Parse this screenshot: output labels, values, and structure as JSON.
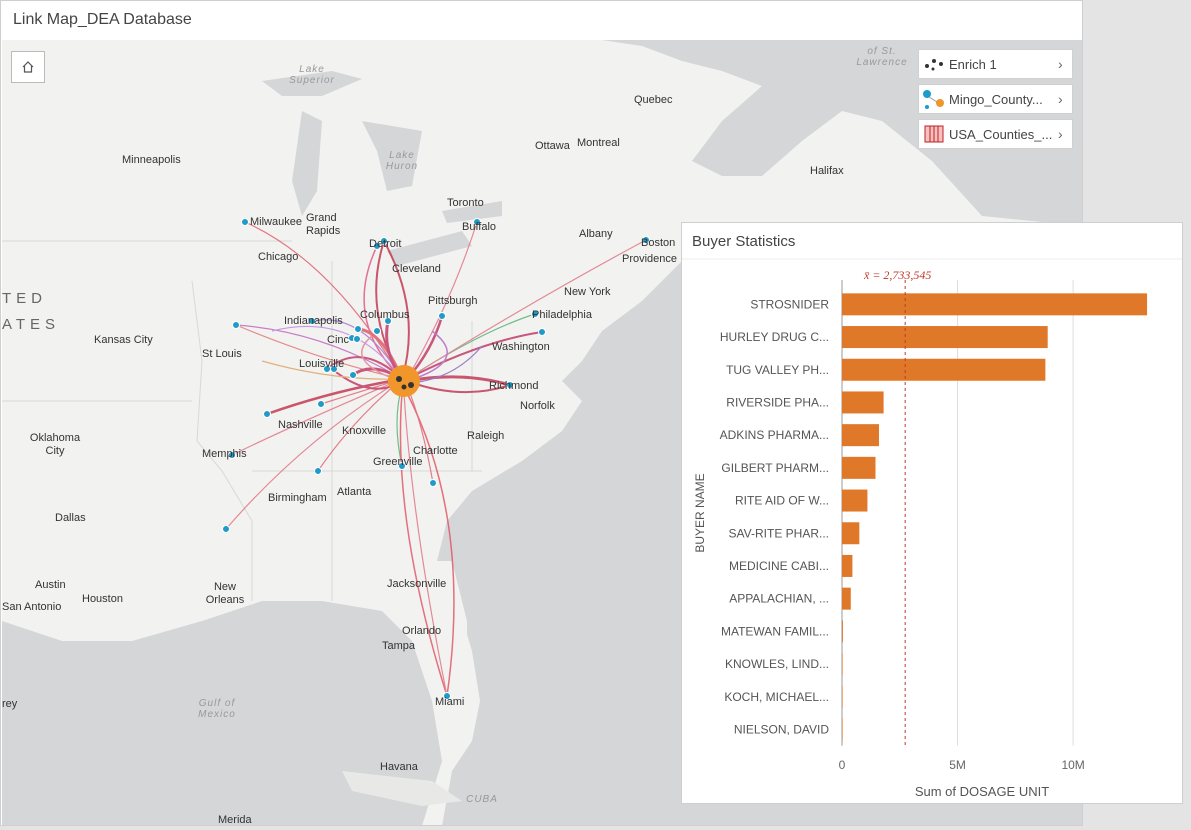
{
  "map": {
    "title": "Link Map_DEA Database",
    "home_icon": "home-icon",
    "layers": [
      {
        "label": "Enrich 1",
        "icon": "points-icon"
      },
      {
        "label": "Mingo_County...",
        "icon": "link-nodes-icon"
      },
      {
        "label": "USA_Counties_...",
        "icon": "polygon-hatch-icon"
      }
    ],
    "regions": {
      "united": "TED",
      "states": "ATES"
    },
    "water": {
      "lake_superior": "Lake Superior",
      "lake_huron": "Lake Huron",
      "st_lawrence": "of St. Lawrence",
      "gulf": "Gulf of Mexico",
      "cuba": "CUBA"
    },
    "cities": {
      "minneapolis": "Minneapolis",
      "quebec": "Quebec",
      "ottawa": "Ottawa",
      "montreal": "Montreal",
      "halifax": "Halifax",
      "toronto": "Toronto",
      "milwaukee": "Milwaukee",
      "grand_rapids": "Grand Rapids",
      "detroit": "Detroit",
      "buffalo": "Buffalo",
      "albany": "Albany",
      "boston": "Boston",
      "providence": "Providence",
      "chicago": "Chicago",
      "cleveland": "Cleveland",
      "pittsburgh": "Pittsburgh",
      "new_york": "New York",
      "philadelphia": "Philadelphia",
      "indianapolis": "Indianapolis",
      "columbus": "Columbus",
      "cincinnati": "Cinc",
      "kansas_city": "Kansas City",
      "st_louis": "St Louis",
      "louisville": "Louisville",
      "washington": "Washington",
      "richmond": "Richmond",
      "norfolk": "Norfolk",
      "nashville": "Nashville",
      "knoxville": "Knoxville",
      "raleigh": "Raleigh",
      "charlotte": "Charlotte",
      "oklahoma_city": "Oklahoma City",
      "memphis": "Memphis",
      "greenville": "Greenville",
      "birmingham": "Birmingham",
      "atlanta": "Atlanta",
      "dallas": "Dallas",
      "austin": "Austin",
      "san_antonio": "San Antonio",
      "houston": "Houston",
      "new_orleans": "New Orleans",
      "jacksonville": "Jacksonville",
      "orlando": "Orlando",
      "tampa": "Tampa",
      "miami": "Miami",
      "havana": "Havana",
      "merida": "Merida",
      "rey": "rey"
    }
  },
  "buyer_stats": {
    "title": "Buyer Statistics",
    "mean_label": "x̄ = 2,733,545",
    "color": "#e0782a"
  },
  "chart_data": {
    "type": "bar",
    "orientation": "horizontal",
    "categories": [
      "STROSNIDER",
      "HURLEY DRUG C...",
      "TUG VALLEY PH...",
      "RIVERSIDE PHA...",
      "ADKINS PHARMA...",
      "GILBERT PHARM...",
      "RITE AID OF W...",
      "SAV-RITE PHAR...",
      "MEDICINE CABI...",
      "APPALACHIAN, ...",
      "MATEWAN FAMIL...",
      "KNOWLES, LIND...",
      "KOCH, MICHAEL...",
      "NIELSON, DAVID"
    ],
    "values": [
      13200000,
      8900000,
      8800000,
      1800000,
      1600000,
      1450000,
      1100000,
      750000,
      450000,
      380000,
      40000,
      5000,
      3000,
      2000
    ],
    "mean": 2733545,
    "xlabel": "Sum of DOSAGE UNIT",
    "ylabel": "BUYER NAME",
    "xlim": [
      0,
      13500000
    ],
    "xticks": [
      {
        "value": 0,
        "label": "0"
      },
      {
        "value": 5000000,
        "label": "5M"
      },
      {
        "value": 10000000,
        "label": "10M"
      }
    ],
    "grid": true
  }
}
